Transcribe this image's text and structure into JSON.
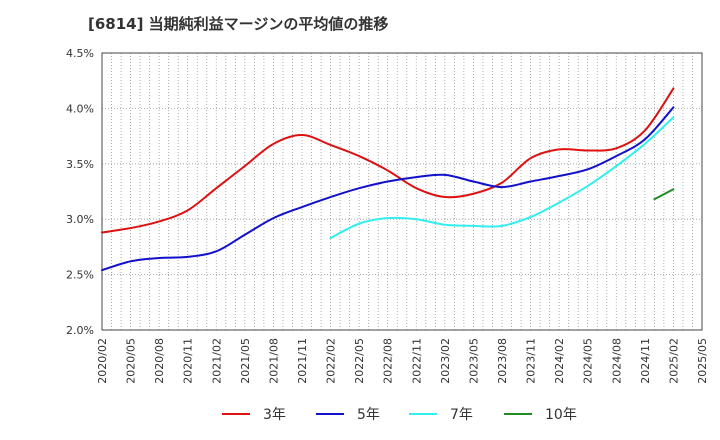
{
  "chart_data": {
    "type": "line",
    "title": "[6814]  当期純利益マージンの平均値の推移",
    "xlabel": "",
    "ylabel": "",
    "ylim": [
      0.02,
      0.045
    ],
    "y_ticks": [
      0.02,
      0.025,
      0.03,
      0.035,
      0.04,
      0.045
    ],
    "y_tick_labels": [
      "2.0%",
      "2.5%",
      "3.0%",
      "3.5%",
      "4.0%",
      "4.5%"
    ],
    "x_tick_labels": [
      "2020/02",
      "2020/05",
      "2020/08",
      "2020/11",
      "2021/02",
      "2021/05",
      "2021/08",
      "2021/11",
      "2022/02",
      "2022/05",
      "2022/08",
      "2022/11",
      "2023/02",
      "2023/05",
      "2023/08",
      "2023/11",
      "2024/02",
      "2024/05",
      "2024/08",
      "2024/11",
      "2025/02",
      "2025/05"
    ],
    "grid": true,
    "legend_position": "bottom",
    "series": [
      {
        "name": "3年",
        "color": "#dd1111",
        "x": [
          "2020/02",
          "2020/05",
          "2020/08",
          "2020/11",
          "2021/02",
          "2021/05",
          "2021/08",
          "2021/11",
          "2022/02",
          "2022/05",
          "2022/08",
          "2022/11",
          "2023/02",
          "2023/05",
          "2023/08",
          "2023/11",
          "2024/02",
          "2024/05",
          "2024/08",
          "2024/11",
          "2025/02"
        ],
        "values": [
          0.0288,
          0.0292,
          0.0298,
          0.0308,
          0.0328,
          0.0348,
          0.0368,
          0.0376,
          0.0367,
          0.0357,
          0.0344,
          0.0328,
          0.032,
          0.0323,
          0.0333,
          0.0355,
          0.0363,
          0.0362,
          0.0364,
          0.038,
          0.0418
        ]
      },
      {
        "name": "5年",
        "color": "#1111cc",
        "x": [
          "2020/02",
          "2020/05",
          "2020/08",
          "2020/11",
          "2021/02",
          "2021/05",
          "2021/08",
          "2021/11",
          "2022/02",
          "2022/05",
          "2022/08",
          "2022/11",
          "2023/02",
          "2023/05",
          "2023/08",
          "2023/11",
          "2024/02",
          "2024/05",
          "2024/08",
          "2024/11",
          "2025/02"
        ],
        "values": [
          0.0254,
          0.0262,
          0.0265,
          0.0266,
          0.0271,
          0.0286,
          0.0301,
          0.0311,
          0.032,
          0.0328,
          0.0334,
          0.0338,
          0.034,
          0.0334,
          0.0329,
          0.0334,
          0.0339,
          0.0345,
          0.0357,
          0.0372,
          0.0401
        ]
      },
      {
        "name": "7年",
        "color": "#33eeee",
        "x": [
          "2022/02",
          "2022/05",
          "2022/08",
          "2022/11",
          "2023/02",
          "2023/05",
          "2023/08",
          "2023/11",
          "2024/02",
          "2024/05",
          "2024/08",
          "2024/11",
          "2025/02"
        ],
        "values": [
          0.0283,
          0.0296,
          0.0301,
          0.03,
          0.0295,
          0.0294,
          0.0294,
          0.0302,
          0.0315,
          0.033,
          0.0348,
          0.0368,
          0.0392
        ]
      },
      {
        "name": "10年",
        "color": "#228b22",
        "x": [
          "2024/12",
          "2025/02"
        ],
        "values": [
          0.0318,
          0.0327
        ]
      }
    ]
  }
}
